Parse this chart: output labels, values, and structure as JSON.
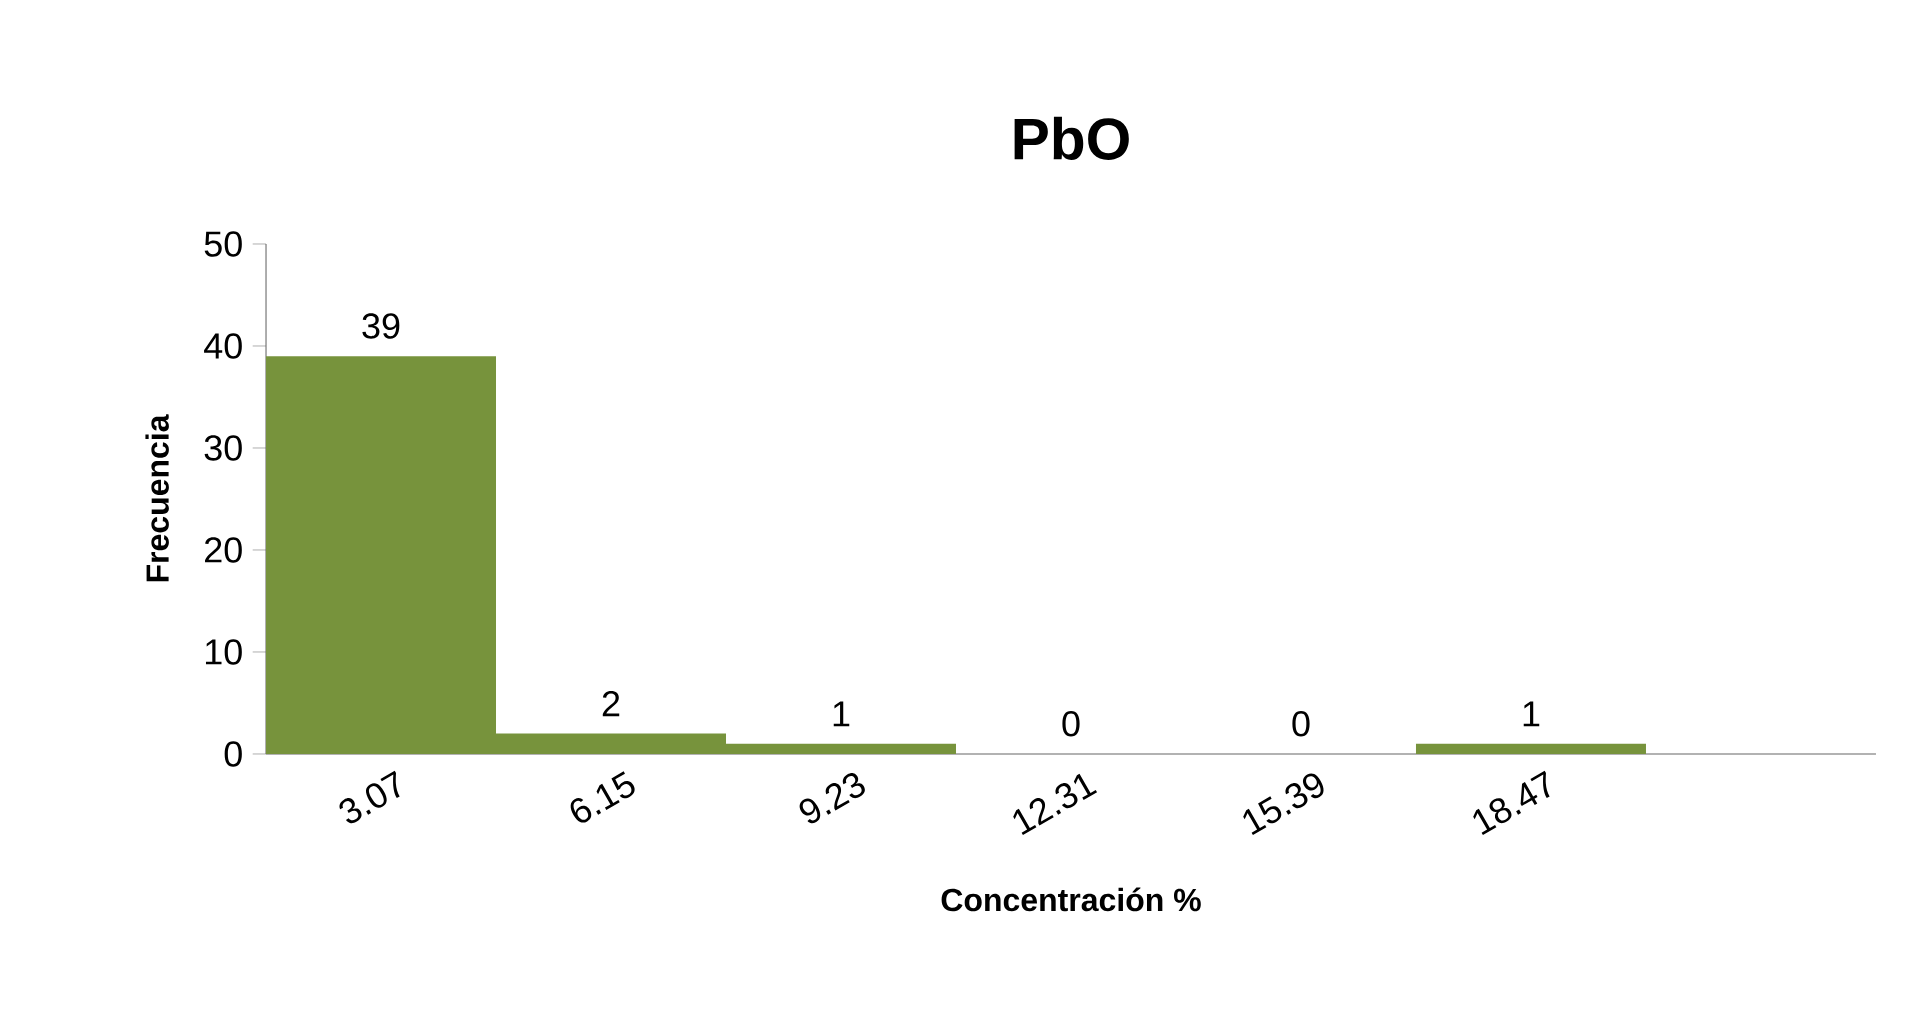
{
  "chart_data": {
    "type": "bar",
    "title": "PbO",
    "xlabel": "Concentración %",
    "ylabel": "Frecuencia",
    "categories": [
      "3.07",
      "6.15",
      "9.23",
      "12.31",
      "15.39",
      "18.47",
      null
    ],
    "values": [
      39,
      2,
      1,
      0,
      0,
      1,
      null
    ],
    "color": "#77933c",
    "data_labels": true,
    "ylim": [
      0,
      50
    ],
    "yticks": [
      0,
      10,
      20,
      30,
      40,
      50
    ],
    "grid": false
  }
}
